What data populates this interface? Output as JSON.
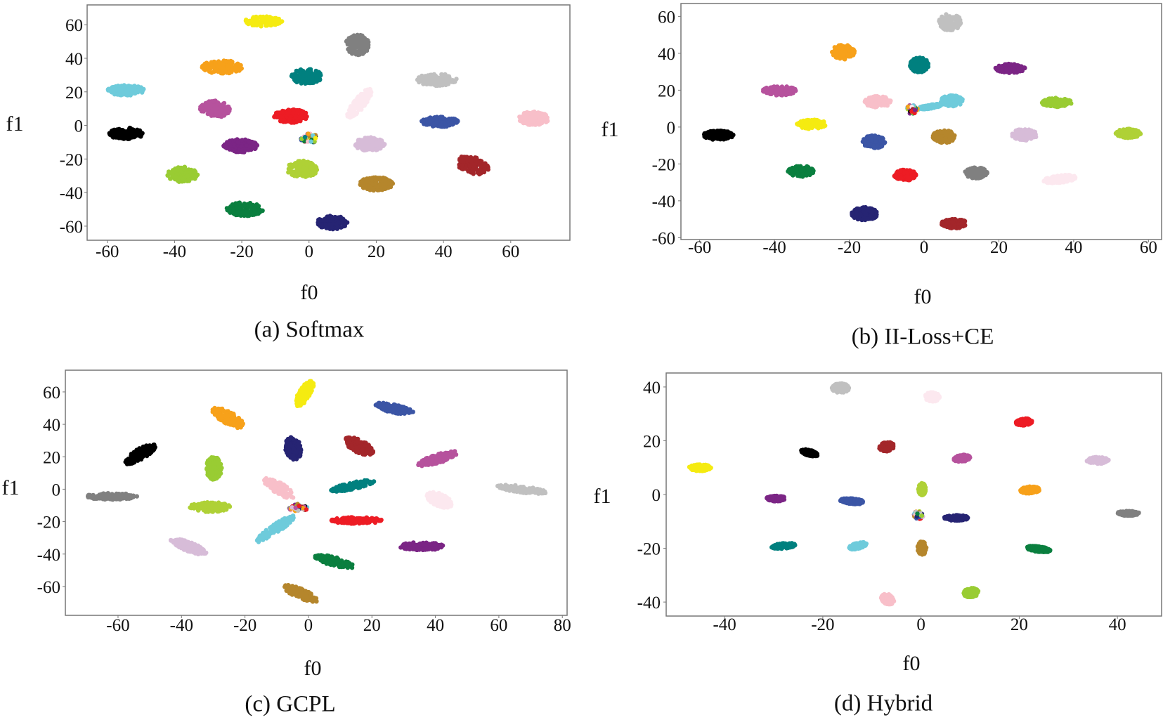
{
  "palette": {
    "black": "#000000",
    "orange": "#f7a11a",
    "cyan": "#6ecbdb",
    "teal": "#00807f",
    "yellow": "#f5eb11",
    "gray": "#808080",
    "lightgray": "#c0c0c0",
    "pink": "#f8bfc9",
    "palepink": "#fce8ef",
    "magenta": "#b6529d",
    "red": "#ed1c24",
    "purple": "#7b2585",
    "darkblue": "#262473",
    "blue": "#3b55a5",
    "green": "#0a7f3f",
    "yellowgreen": "#afd136",
    "lightgreen": "#99cc33",
    "brown": "#b5862c",
    "maroon": "#a3262a",
    "lilac": "#d7bcd8"
  },
  "chart_data": [
    {
      "type": "scatter",
      "caption": "(a)  Softmax",
      "xlabel": "f0",
      "ylabel": "f1",
      "xlim": [
        -66,
        77.6
      ],
      "ylim": [
        -68.4,
        71.8
      ],
      "xticks": [
        "-60",
        "-40",
        "-20",
        "0",
        "20",
        "40",
        "60"
      ],
      "yticks": [
        "60",
        "40",
        "20",
        "0",
        "-20",
        "-40",
        "-60"
      ],
      "cluster_columns": [
        "color",
        "x",
        "y",
        "width",
        "height",
        "angle_deg"
      ],
      "clusters": [
        [
          "yellow",
          -13.5,
          62,
          11,
          6,
          0
        ],
        [
          "gray",
          14.4,
          48,
          7,
          12,
          0
        ],
        [
          "orange",
          -25.8,
          34.8,
          12,
          8,
          0
        ],
        [
          "teal",
          -0.7,
          29.2,
          9,
          9,
          0
        ],
        [
          "lightgray",
          37.9,
          27.2,
          12,
          7,
          0
        ],
        [
          "cyan",
          -54.4,
          20.9,
          11,
          6,
          0
        ],
        [
          "palepink",
          15,
          13.2,
          4,
          18,
          -20
        ],
        [
          "magenta",
          -28,
          9.7,
          9,
          10,
          0
        ],
        [
          "red",
          -5.4,
          5.6,
          10,
          8,
          0
        ],
        [
          "pink",
          66.8,
          4.2,
          9,
          8,
          0
        ],
        [
          "blue",
          38.9,
          2.1,
          11,
          6,
          0
        ],
        [
          "black",
          -54.4,
          -4.9,
          10,
          7,
          0
        ],
        [
          "mixed",
          0,
          -7.7,
          5,
          6,
          0
        ],
        [
          "purple",
          -20.4,
          -12.1,
          10,
          8,
          0
        ],
        [
          "lilac",
          18,
          -11.1,
          9,
          8,
          0
        ],
        [
          "maroon",
          48.6,
          -23.7,
          8,
          12,
          35
        ],
        [
          "yellowgreen",
          -2,
          -26,
          9,
          10,
          0
        ],
        [
          "lightgreen",
          -37.6,
          -29.2,
          9,
          9,
          0
        ],
        [
          "brown",
          20,
          -34.8,
          10,
          8,
          0
        ],
        [
          "green",
          -19.1,
          -49.9,
          11,
          8,
          0
        ],
        [
          "darkblue",
          6.9,
          -57.8,
          9,
          8,
          0
        ]
      ]
    },
    {
      "type": "scatter",
      "caption": "(b)  II-Loss+CE",
      "xlabel": "f0",
      "ylabel": "f1",
      "xlim": [
        -65,
        63.5
      ],
      "ylim": [
        -61,
        67
      ],
      "xticks": [
        "-60",
        "-40",
        "-20",
        "0",
        "20",
        "40",
        "60"
      ],
      "yticks": [
        "60",
        "40",
        "20",
        "0",
        "-20",
        "-40",
        "-60"
      ],
      "cluster_columns": [
        "color",
        "x",
        "y",
        "width",
        "height",
        "angle_deg"
      ],
      "clusters": [
        [
          "lightgray",
          6.9,
          56.9,
          6,
          9,
          0
        ],
        [
          "orange",
          -21.6,
          40.7,
          6,
          8,
          0
        ],
        [
          "teal",
          -1.3,
          33.7,
          5,
          8,
          0
        ],
        [
          "purple",
          23,
          31.8,
          8,
          5,
          0
        ],
        [
          "magenta",
          -38.7,
          19.7,
          9,
          5,
          0
        ],
        [
          "pink",
          -12.4,
          13.7,
          7,
          6,
          0
        ],
        [
          "cyan",
          7.4,
          14.2,
          6,
          6,
          0
        ],
        [
          "cyan",
          1.5,
          11,
          7,
          2,
          20
        ],
        [
          "mixed",
          -3.2,
          9.5,
          3,
          5,
          0
        ],
        [
          "lightgreen",
          35.5,
          13.3,
          8,
          5,
          0
        ],
        [
          "yellow",
          -30,
          1.5,
          8,
          5,
          0
        ],
        [
          "black",
          -55,
          -4.4,
          8,
          5,
          0
        ],
        [
          "blue",
          -13.4,
          -8,
          6,
          7,
          0
        ],
        [
          "brown",
          5.3,
          -5.1,
          6,
          7,
          0
        ],
        [
          "lilac",
          26.8,
          -4.1,
          7,
          6,
          -20
        ],
        [
          "yellowgreen",
          54.6,
          -3.4,
          7,
          5,
          0
        ],
        [
          "green",
          -33,
          -23.9,
          7,
          6,
          0
        ],
        [
          "red",
          -5,
          -26,
          6,
          6,
          0
        ],
        [
          "gray",
          13.9,
          -24.8,
          6,
          6,
          0
        ],
        [
          "palepink",
          36.2,
          -28.2,
          9,
          4,
          15
        ],
        [
          "darkblue",
          -15.9,
          -47,
          7,
          7,
          0
        ],
        [
          "maroon",
          8.1,
          -52.4,
          7,
          5,
          0
        ]
      ]
    },
    {
      "type": "scatter",
      "caption": "(c)  GCPL",
      "xlabel": "f0",
      "ylabel": "f1",
      "xlim": [
        -76.6,
        81.5
      ],
      "ylim": [
        -77.8,
        73.4
      ],
      "xticks": [
        "-60",
        "-40",
        "-20",
        "0",
        "20",
        "40",
        "60",
        "80"
      ],
      "yticks": [
        "60",
        "40",
        "20",
        "0",
        "-20",
        "-40",
        "-60"
      ],
      "cluster_columns": [
        "color",
        "x",
        "y",
        "width",
        "height",
        "angle_deg"
      ],
      "clusters": [
        [
          "yellow",
          -1.2,
          59,
          4,
          16,
          -15
        ],
        [
          "blue",
          27,
          49.7,
          13,
          5,
          -25
        ],
        [
          "orange",
          -25.3,
          44,
          6,
          15,
          35
        ],
        [
          "black",
          -53,
          21.6,
          5,
          15,
          -35
        ],
        [
          "darkblue",
          -4.8,
          25.2,
          5,
          14,
          5
        ],
        [
          "maroon",
          15.9,
          26.6,
          6,
          13,
          35
        ],
        [
          "magenta",
          40.6,
          18.7,
          15,
          5,
          35
        ],
        [
          "lightgreen",
          -29.8,
          12.9,
          5,
          14,
          0
        ],
        [
          "teal",
          13.9,
          2.1,
          15,
          4,
          25
        ],
        [
          "gray",
          -62,
          -4.4,
          16,
          4,
          0
        ],
        [
          "lightgray",
          67.3,
          -0.1,
          16,
          4,
          -15
        ],
        [
          "pink",
          -9.3,
          0.6,
          5,
          15,
          35
        ],
        [
          "palepink",
          41.2,
          -6.6,
          6,
          11,
          35
        ],
        [
          "mixed",
          -3.3,
          -11.6,
          6,
          5,
          0
        ],
        [
          "yellowgreen",
          -31.2,
          -11,
          13,
          6,
          0
        ],
        [
          "red",
          15.1,
          -19.3,
          16,
          4,
          0
        ],
        [
          "cyan",
          -10.5,
          -24.6,
          4,
          20,
          -35
        ],
        [
          "lilac",
          -37.8,
          -35.4,
          14,
          5,
          -40
        ],
        [
          "purple",
          35.6,
          -35.2,
          14,
          5,
          0
        ],
        [
          "green",
          8.2,
          -44.6,
          14,
          5,
          -30
        ],
        [
          "brown",
          -2.5,
          -64.4,
          14,
          5,
          -45
        ]
      ]
    },
    {
      "type": "scatter",
      "caption": "(d)  Hybrid",
      "xlabel": "f0",
      "ylabel": "f1",
      "xlim": [
        -51.9,
        49
      ],
      "ylim": [
        -45.2,
        45.2
      ],
      "xticks": [
        "-40",
        "-20",
        "0",
        "20",
        "40"
      ],
      "yticks": [
        "40",
        "20",
        "0",
        "-20",
        "-40"
      ],
      "cluster_columns": [
        "color",
        "x",
        "y",
        "width",
        "height",
        "angle_deg"
      ],
      "clusters": [
        [
          "lightgray",
          -16.4,
          39.6,
          3.5,
          3.5,
          0
        ],
        [
          "palepink",
          2.3,
          36.3,
          3,
          3.5,
          0
        ],
        [
          "red",
          21,
          27,
          3.5,
          2.5,
          20
        ],
        [
          "maroon",
          -7,
          17.8,
          3,
          3.5,
          -20
        ],
        [
          "black",
          -22.7,
          15.5,
          4,
          2,
          -30
        ],
        [
          "magenta",
          8.3,
          13.5,
          3.5,
          2.5,
          20
        ],
        [
          "lilac",
          36,
          12.7,
          4.5,
          2.5,
          0
        ],
        [
          "yellow",
          -45,
          10,
          4.5,
          2.5,
          0
        ],
        [
          "yellowgreen",
          0.2,
          2,
          1.5,
          4.5,
          0
        ],
        [
          "orange",
          22.2,
          1.7,
          4,
          2.5,
          10
        ],
        [
          "purple",
          -29.5,
          -1.5,
          4,
          2,
          0
        ],
        [
          "blue",
          -14,
          -2.5,
          5,
          2,
          -10
        ],
        [
          "gray",
          42.2,
          -7,
          4.5,
          1.8,
          0
        ],
        [
          "mixed",
          -0.5,
          -7.7,
          2,
          3,
          0
        ],
        [
          "darkblue",
          7.2,
          -8.7,
          5,
          2,
          0
        ],
        [
          "teal",
          -28,
          -19.1,
          5,
          2,
          10
        ],
        [
          "cyan",
          -12.9,
          -19.1,
          4,
          2,
          30
        ],
        [
          "brown",
          0.2,
          -19.9,
          1.8,
          5,
          0
        ],
        [
          "green",
          23.9,
          -20.3,
          5,
          2,
          -15
        ],
        [
          "lightgreen",
          10.2,
          -36.5,
          3,
          3.5,
          -30
        ],
        [
          "pink",
          -6.8,
          -38.9,
          2.5,
          4,
          15
        ]
      ]
    }
  ]
}
